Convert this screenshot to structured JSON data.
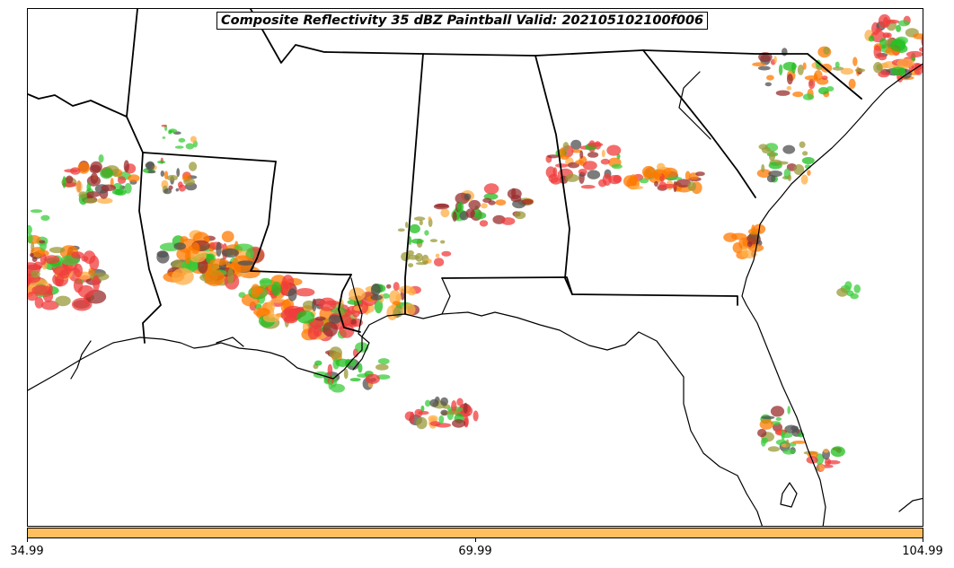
{
  "title": "Composite Reflectivity 35 dBZ Paintball Valid: 202105102100f006",
  "colorbar": {
    "color": "#ffbf60",
    "ticks": [
      "34.99",
      "69.99",
      "104.99"
    ]
  },
  "paint_colors": {
    "red": "#f03c3c",
    "orange": "#ff7a00",
    "light_orange": "#ffad44",
    "green": "#3ccc3c",
    "dark_red": "#9a2e2e",
    "olive": "#9a9a3a",
    "dark_gray": "#505050",
    "bright_green": "#1fbf1f"
  }
}
